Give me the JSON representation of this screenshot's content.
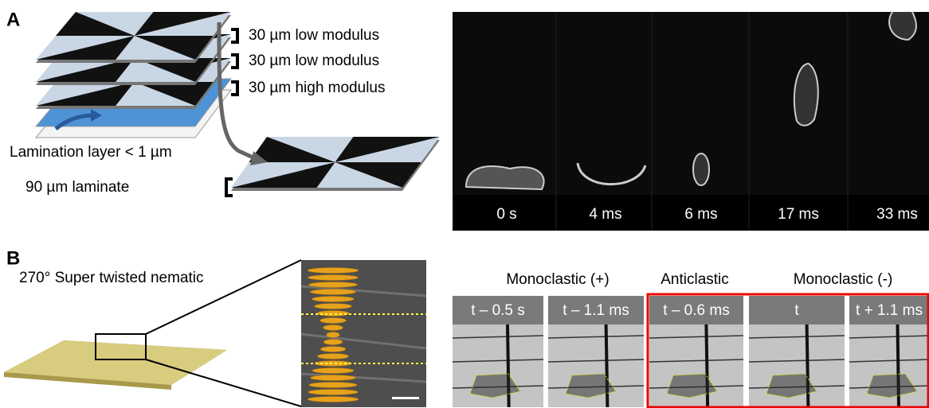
{
  "panel_a": {
    "label": "A",
    "layers": [
      "30 µm low modulus",
      "30 µm low modulus",
      "30 µm high modulus"
    ],
    "lamination_label": "Lamination layer  < 1 µm",
    "laminate_label": "90 µm laminate",
    "frames": [
      "0 s",
      "4 ms",
      "6 ms",
      "17 ms",
      "33 ms"
    ]
  },
  "panel_b": {
    "label": "B",
    "structure_label": "270° Super twisted nematic",
    "groups": [
      "Monoclastic (+)",
      "Anticlastic",
      "Monoclastic (-)"
    ],
    "frames": [
      "t – 0.5 s",
      "t – 1.1 ms",
      "t – 0.6 ms",
      "t",
      "t + 1.1 ms"
    ]
  }
}
